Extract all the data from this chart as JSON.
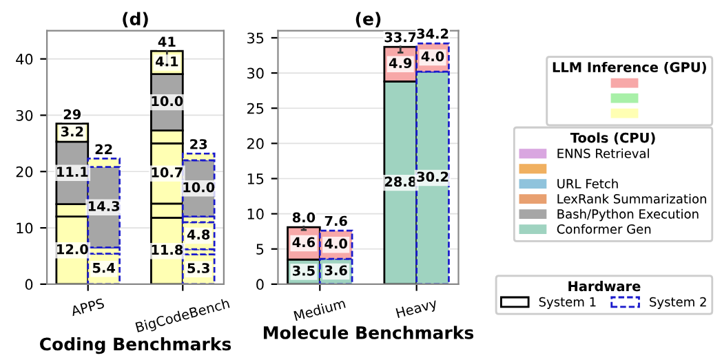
{
  "chart_data": [
    {
      "type": "bar",
      "title": "(d)",
      "xlabel": "Coding Benchmarks",
      "categories": [
        "APPS",
        null,
        null,
        "BigCodeBench",
        null
      ],
      "stacked": true,
      "ylim": [
        0,
        45
      ],
      "yticks": [
        0,
        10,
        20,
        30,
        40
      ],
      "grid": "y",
      "totals": [
        "29",
        "22",
        null,
        "41",
        "23"
      ],
      "series": [
        {
          "line_style": "solid",
          "colors": [
            "#ffffb3",
            null,
            null,
            "#ffffb3",
            null
          ],
          "values": [
            12.0,
            null,
            null,
            11.8,
            null
          ],
          "value_labels": [
            "12.0",
            null,
            null,
            "11.8",
            null
          ]
        },
        {
          "line_style": "solid",
          "colors": [
            "#ffffb3",
            null,
            null,
            "#ffffb3",
            null
          ],
          "values": [
            2.2,
            null,
            null,
            2.5,
            null
          ]
        },
        {
          "line_style": "solid",
          "colors": [
            "#a6a6a6",
            null,
            null,
            "#ffffb3",
            null
          ],
          "values": [
            11.1,
            null,
            null,
            10.7,
            null
          ],
          "value_labels": [
            "11.1",
            null,
            null,
            "10.7",
            null
          ]
        },
        {
          "line_style": "solid",
          "colors": [
            "#ffffb3",
            null,
            null,
            "#ffffb3",
            null
          ],
          "values": [
            3.2,
            null,
            null,
            2.3,
            null
          ],
          "value_labels": [
            "3.2",
            null,
            null,
            null,
            null
          ]
        },
        {
          "line_style": "solid",
          "colors": [
            null,
            null,
            null,
            "#a6a6a6",
            null
          ],
          "values": [
            null,
            null,
            null,
            10.0,
            null
          ],
          "value_labels": [
            null,
            null,
            null,
            "10.0",
            null
          ]
        },
        {
          "line_style": "solid",
          "colors": [
            null,
            null,
            null,
            "#ffffb3",
            null
          ],
          "values": [
            null,
            null,
            null,
            4.1,
            null
          ],
          "value_labels": [
            null,
            null,
            null,
            "4.1",
            null
          ],
          "errors": [
            null,
            null,
            null,
            2.5,
            null
          ]
        },
        {
          "line_style": "dashed",
          "colors": [
            null,
            "#ffffb3",
            null,
            null,
            "#ffffb3"
          ],
          "values": [
            null,
            5.4,
            null,
            null,
            5.3
          ],
          "value_labels": [
            null,
            "5.4",
            null,
            null,
            "5.3"
          ]
        },
        {
          "line_style": "dashed",
          "colors": [
            null,
            "#ffffb3",
            null,
            null,
            "#ffffb3"
          ],
          "values": [
            null,
            1.1,
            null,
            null,
            0.9
          ]
        },
        {
          "line_style": "dashed",
          "colors": [
            null,
            "#a6a6a6",
            null,
            null,
            "#ffffb3"
          ],
          "values": [
            null,
            14.3,
            null,
            null,
            4.8
          ],
          "value_labels": [
            null,
            "14.3",
            null,
            null,
            "4.8"
          ]
        },
        {
          "line_style": "dashed",
          "colors": [
            null,
            "#ffffb3",
            null,
            null,
            "#ffffb3"
          ],
          "values": [
            null,
            1.5,
            null,
            null,
            1.0
          ]
        },
        {
          "line_style": "dashed",
          "colors": [
            null,
            null,
            null,
            null,
            "#a6a6a6"
          ],
          "values": [
            null,
            null,
            null,
            null,
            10.0
          ],
          "value_labels": [
            null,
            null,
            null,
            null,
            "10.0"
          ]
        },
        {
          "line_style": "dashed",
          "colors": [
            null,
            null,
            null,
            null,
            "#ffffb3"
          ],
          "values": [
            null,
            null,
            null,
            null,
            1.2
          ]
        }
      ]
    },
    {
      "type": "bar",
      "title": "(e)",
      "xlabel": "Molecule Benchmarks",
      "categories": [
        "Medium",
        null,
        null,
        "Heavy",
        null
      ],
      "stacked": true,
      "ylim": [
        0,
        36
      ],
      "yticks": [
        0,
        5,
        10,
        15,
        20,
        25,
        30,
        35
      ],
      "grid": "y",
      "totals": [
        "8.0",
        "7.6",
        null,
        "33.7",
        "34.2"
      ],
      "series": [
        {
          "line_style": "solid",
          "color": "#9fd3c0",
          "values": [
            3.5,
            null,
            null,
            28.8,
            null
          ],
          "value_labels": [
            "3.5",
            null,
            null,
            "28.8",
            null
          ]
        },
        {
          "line_style": "solid",
          "color": "#f7a8a8",
          "values": [
            4.6,
            null,
            null,
            4.9,
            null
          ],
          "value_labels": [
            "4.6",
            null,
            null,
            "4.9",
            null
          ],
          "errors": [
            0.4,
            null,
            null,
            0.8,
            null
          ]
        },
        {
          "line_style": "dashed",
          "color": "#9fd3c0",
          "values": [
            null,
            3.6,
            null,
            null,
            30.2
          ],
          "value_labels": [
            null,
            "3.6",
            null,
            null,
            "30.2"
          ]
        },
        {
          "line_style": "dashed",
          "color": "#f7a8a8",
          "values": [
            null,
            4.0,
            null,
            null,
            4.0
          ],
          "value_labels": [
            null,
            "4.0",
            null,
            null,
            "4.0"
          ]
        }
      ]
    },
    {
      "type": "other",
      "title": "LLM Inference (GPU)",
      "series": [
        {
          "color": "#f7a8a8"
        },
        {
          "color": "#a8f0a8"
        },
        {
          "color": "#ffffb3"
        }
      ]
    },
    {
      "type": "other",
      "title": "Tools (CPU)",
      "series": [
        {
          "name": "ENNS Retrieval",
          "color": "#d9a6e0"
        },
        {
          "color": "#f0b060"
        },
        {
          "name": "URL Fetch",
          "color": "#8fc3dc"
        },
        {
          "name": "LexRank Summarization",
          "color": "#e8a070"
        },
        {
          "name": "Bash/Python Execution",
          "color": "#a6a6a6"
        },
        {
          "name": "Conformer Gen",
          "color": "#9fd3c0"
        }
      ]
    },
    {
      "type": "other",
      "title": "Hardware",
      "series": [
        {
          "name": "System 1",
          "color": "#000000",
          "line_style": "solid"
        },
        {
          "name": "System 2",
          "color": "#1a1acc",
          "line_style": "dashed"
        }
      ]
    }
  ]
}
